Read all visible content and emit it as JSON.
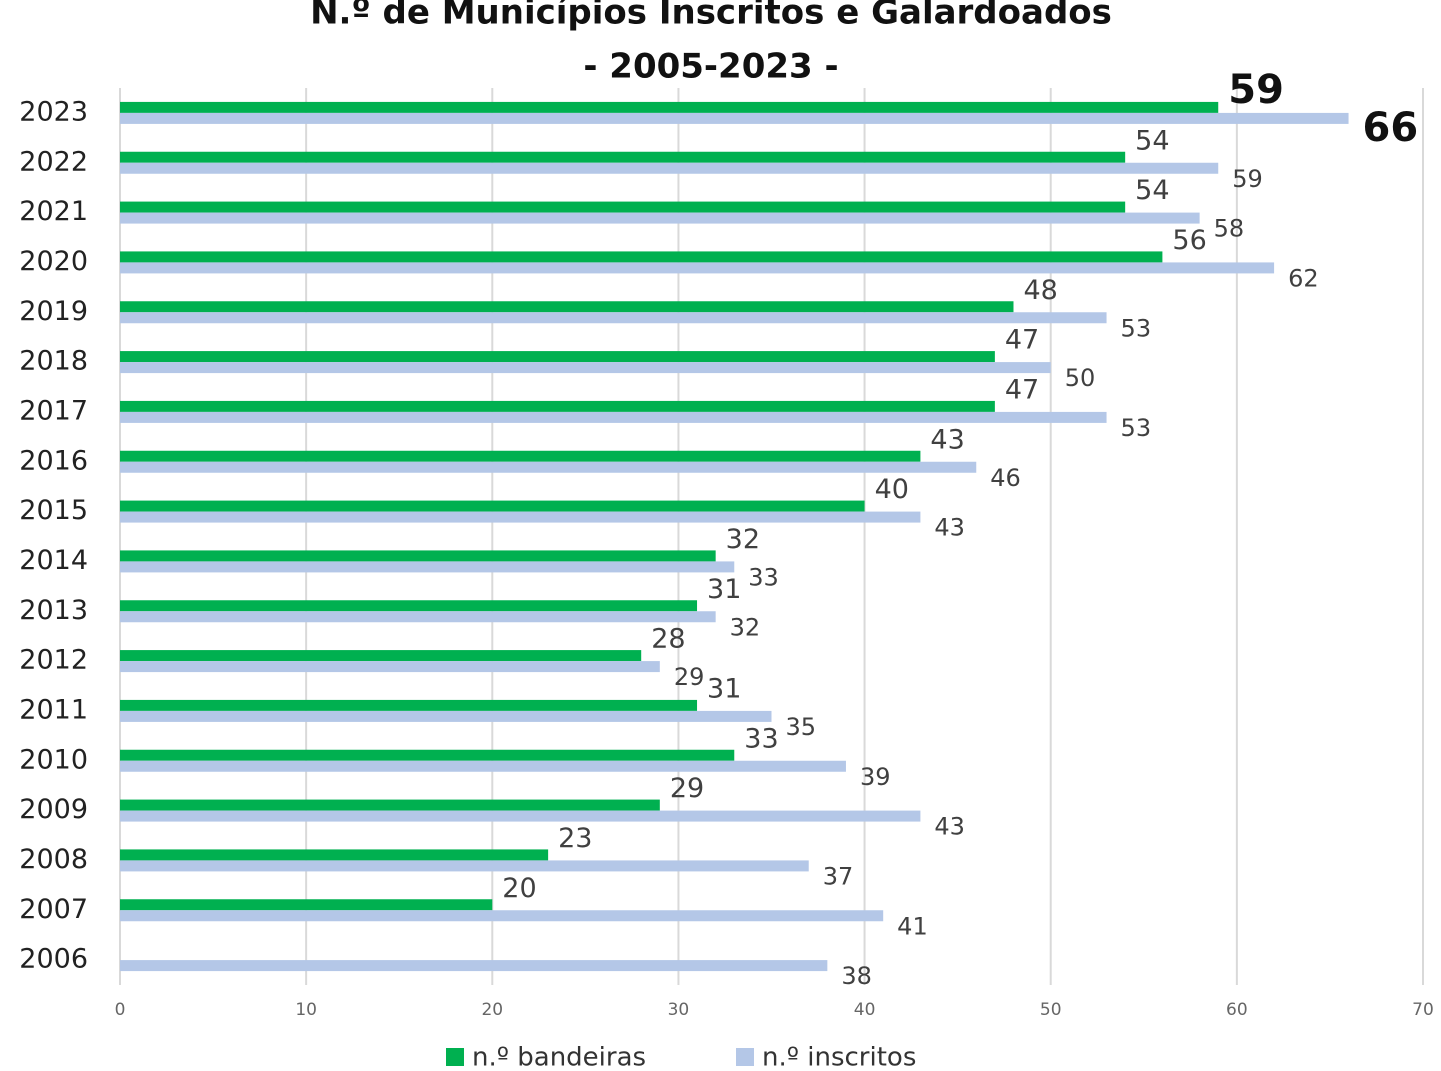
{
  "chart_data": {
    "type": "barh",
    "title": "N.º de Municípios Inscritos e Galardoados",
    "subtitle": "- 2005-2023 -",
    "categories": [
      "2023",
      "2022",
      "2021",
      "2020",
      "2019",
      "2018",
      "2017",
      "2016",
      "2015",
      "2014",
      "2013",
      "2012",
      "2011",
      "2010",
      "2009",
      "2008",
      "2007",
      "2006"
    ],
    "series": [
      {
        "name": "n.º bandeiras",
        "color": "#00b050",
        "values": [
          59,
          54,
          54,
          56,
          48,
          47,
          47,
          43,
          40,
          32,
          31,
          28,
          31,
          33,
          29,
          23,
          20,
          null
        ]
      },
      {
        "name": "n.º inscritos",
        "color": "#b4c7e7",
        "values": [
          66,
          59,
          58,
          62,
          53,
          50,
          53,
          46,
          43,
          33,
          32,
          29,
          35,
          39,
          43,
          37,
          41,
          38
        ]
      }
    ],
    "xlim": [
      0,
      70
    ],
    "xticks": [
      0,
      10,
      20,
      30,
      40,
      50,
      60,
      70
    ],
    "grid": true,
    "legend": "bottom"
  }
}
